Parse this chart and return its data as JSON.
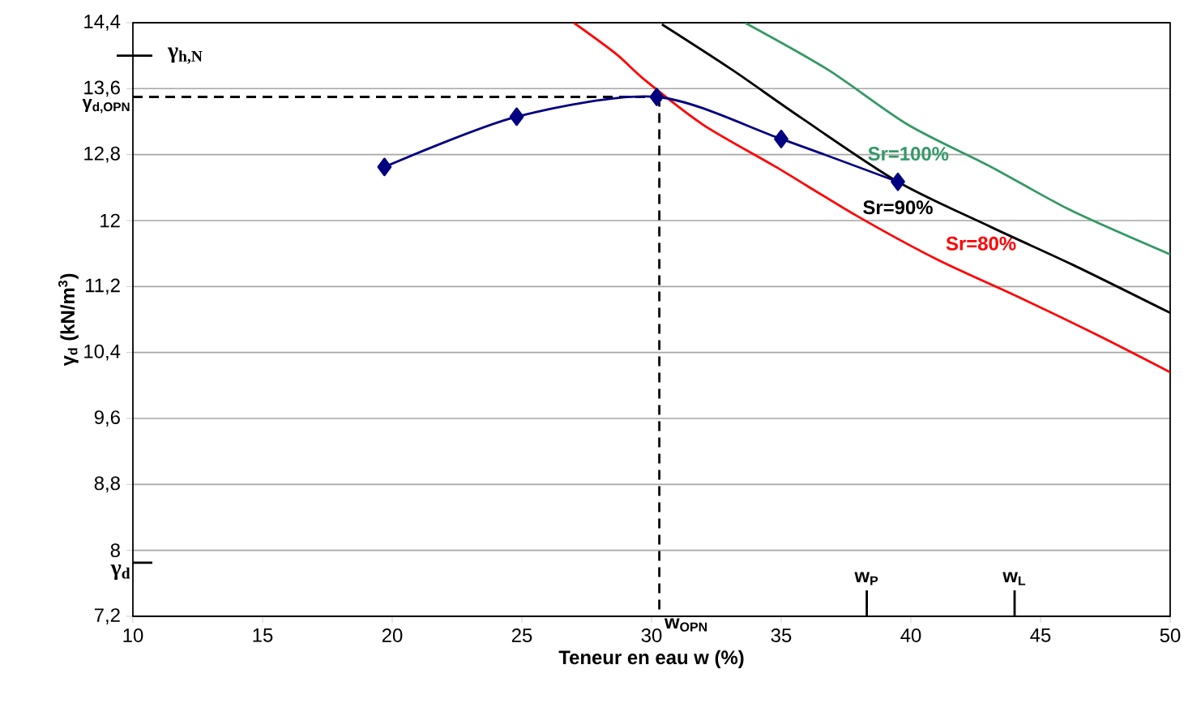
{
  "chart_data": {
    "type": "line",
    "xlabel": "Teneur en eau w (%)",
    "ylabel": "γ$_{d}$ (kN/m$^{3}$)",
    "xlim": [
      10,
      50
    ],
    "ylim": [
      7.2,
      14.4
    ],
    "xticks": [
      10,
      15,
      20,
      25,
      30,
      35,
      40,
      45,
      50
    ],
    "yticks": [
      {
        "value": 7.2,
        "label": "7,2"
      },
      8,
      {
        "value": 8.8,
        "label": "8,8"
      },
      {
        "value": 9.6,
        "label": "9,6"
      },
      {
        "value": 10.4,
        "label": "10,4"
      },
      {
        "value": 11.2,
        "label": "11,2"
      },
      12,
      {
        "value": 12.8,
        "label": "12,8"
      },
      {
        "value": 13.6,
        "label": "13,6"
      },
      {
        "value": 14.4,
        "label": "14,4"
      }
    ],
    "grid": "y",
    "series": [
      {
        "color": "#000000",
        "line_style": "dashed",
        "marker": "none",
        "x": [
          10,
          30.3
        ],
        "values": [
          13.5,
          13.5
        ]
      },
      {
        "color": "#000000",
        "line_style": "dashed",
        "marker": "none",
        "x": [
          30.3,
          30.3
        ],
        "values": [
          13.5,
          7.2
        ]
      },
      {
        "name": "Sr=80%",
        "color": "#ff0000",
        "line_style": "solid",
        "marker": "none",
        "x": [
          27.0,
          28.6,
          29.8,
          32.0,
          34.8,
          37.9,
          41.0,
          44.1,
          47.2,
          50.0
        ],
        "values": [
          14.4,
          14.03,
          13.69,
          13.16,
          12.65,
          12.06,
          11.53,
          11.08,
          10.61,
          10.16
        ]
      },
      {
        "name": "Sr=90%",
        "color": "#000000",
        "line_style": "solid",
        "marker": "none",
        "x": [
          30.4,
          33.1,
          35.8,
          39.5,
          43.1,
          46.2,
          50.0
        ],
        "values": [
          14.38,
          13.83,
          13.24,
          12.47,
          11.92,
          11.47,
          10.88
        ]
      },
      {
        "name": "Sr=100%",
        "color": "#339966",
        "line_style": "solid",
        "marker": "none",
        "x": [
          33.6,
          36.8,
          39.9,
          43.1,
          46.2,
          50.0
        ],
        "values": [
          14.4,
          13.83,
          13.16,
          12.65,
          12.12,
          11.59
        ]
      },
      {
        "color": "#000080",
        "line_style": "solid",
        "marker": "diamond",
        "x": [
          19.7,
          24.8,
          30.2,
          35.0,
          39.5
        ],
        "values": [
          12.65,
          13.26,
          13.5,
          12.99,
          12.47
        ]
      }
    ],
    "annotations": [
      "γ$_{h,N}$",
      {
        "text": "γ$_{d,OPN}$",
        "x": 10,
        "y": 13.5
      },
      "γ$_{d}$",
      {
        "text": "w$_{OPN}$",
        "x": 30.3,
        "y": 7.2
      },
      "w$_{P}$",
      "w$_{L}$"
    ]
  }
}
